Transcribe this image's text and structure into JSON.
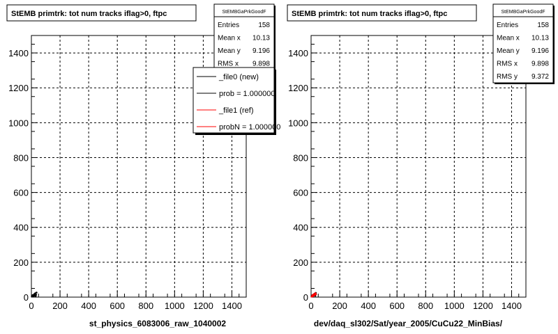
{
  "chart_data": [
    {
      "type": "scatter",
      "title": "StEMB primtrk: tot num tracks iflag>0, ftpc",
      "xlabel": "st_physics_6083006_raw_1040002",
      "ylabel": "",
      "xlim": [
        0,
        1500
      ],
      "ylim": [
        0,
        1500
      ],
      "xticks": [
        "0",
        "200",
        "400",
        "600",
        "800",
        "1000",
        "1200",
        "1400"
      ],
      "yticks": [
        "0",
        "200",
        "400",
        "600",
        "800",
        "1000",
        "1200",
        "1400"
      ],
      "grid": true,
      "stats": {
        "name": "StEMBGaPrkGoodF",
        "rows": [
          {
            "label": "Entries",
            "value": "158"
          },
          {
            "label": "Mean x",
            "value": "10.13"
          },
          {
            "label": "Mean y",
            "value": "9.196"
          },
          {
            "label": "RMS x",
            "value": "9.898"
          }
        ]
      },
      "legend": {
        "placement": "top-right",
        "entries": [
          {
            "label": "_file0 (new)",
            "color": "#000000"
          },
          {
            "label": "prob = 1.000000",
            "color": "#000000"
          },
          {
            "label": "_file1 (ref)",
            "color": "#ff0000"
          },
          {
            "label": "probN = 1.000000",
            "color": "#ff0000"
          }
        ]
      },
      "series": [
        {
          "color": "#000000",
          "points": [
            [
              3,
              3
            ],
            [
              5,
              8
            ],
            [
              7,
              5
            ],
            [
              9,
              12
            ],
            [
              11,
              6
            ],
            [
              13,
              10
            ],
            [
              15,
              4
            ],
            [
              17,
              14
            ],
            [
              19,
              8
            ],
            [
              21,
              18
            ],
            [
              24,
              10
            ],
            [
              27,
              22
            ],
            [
              30,
              6
            ],
            [
              33,
              14
            ],
            [
              36,
              26
            ]
          ]
        }
      ]
    },
    {
      "type": "scatter",
      "title": "StEMB primtrk: tot num tracks iflag>0, ftpc",
      "xlabel": "dev/daq_sl302/Sat/year_2005/CuCu22_MinBias/",
      "ylabel": "",
      "xlim": [
        0,
        1500
      ],
      "ylim": [
        0,
        1500
      ],
      "xticks": [
        "0",
        "200",
        "400",
        "600",
        "800",
        "1000",
        "1200",
        "1400"
      ],
      "yticks": [
        "0",
        "200",
        "400",
        "600",
        "800",
        "1000",
        "1200",
        "1400"
      ],
      "grid": true,
      "stats": {
        "name": "StEMBGaPrkGoodF",
        "rows": [
          {
            "label": "Entries",
            "value": "158"
          },
          {
            "label": "Mean x",
            "value": "10.13"
          },
          {
            "label": "Mean y",
            "value": "9.196"
          },
          {
            "label": "RMS x",
            "value": "9.898"
          },
          {
            "label": "RMS y",
            "value": "9.372"
          }
        ]
      },
      "series": [
        {
          "color": "#000000",
          "points": [
            [
              3,
              4
            ],
            [
              6,
              9
            ],
            [
              9,
              6
            ],
            [
              12,
              13
            ],
            [
              15,
              7
            ],
            [
              18,
              16
            ],
            [
              21,
              10
            ],
            [
              25,
              20
            ],
            [
              29,
              8
            ],
            [
              33,
              24
            ]
          ]
        },
        {
          "color": "#ff0000",
          "points": [
            [
              4,
              3
            ],
            [
              7,
              7
            ],
            [
              10,
              11
            ],
            [
              13,
              5
            ],
            [
              16,
              15
            ],
            [
              19,
              9
            ],
            [
              22,
              18
            ],
            [
              26,
              12
            ],
            [
              30,
              22
            ],
            [
              34,
              16
            ]
          ]
        }
      ]
    }
  ]
}
